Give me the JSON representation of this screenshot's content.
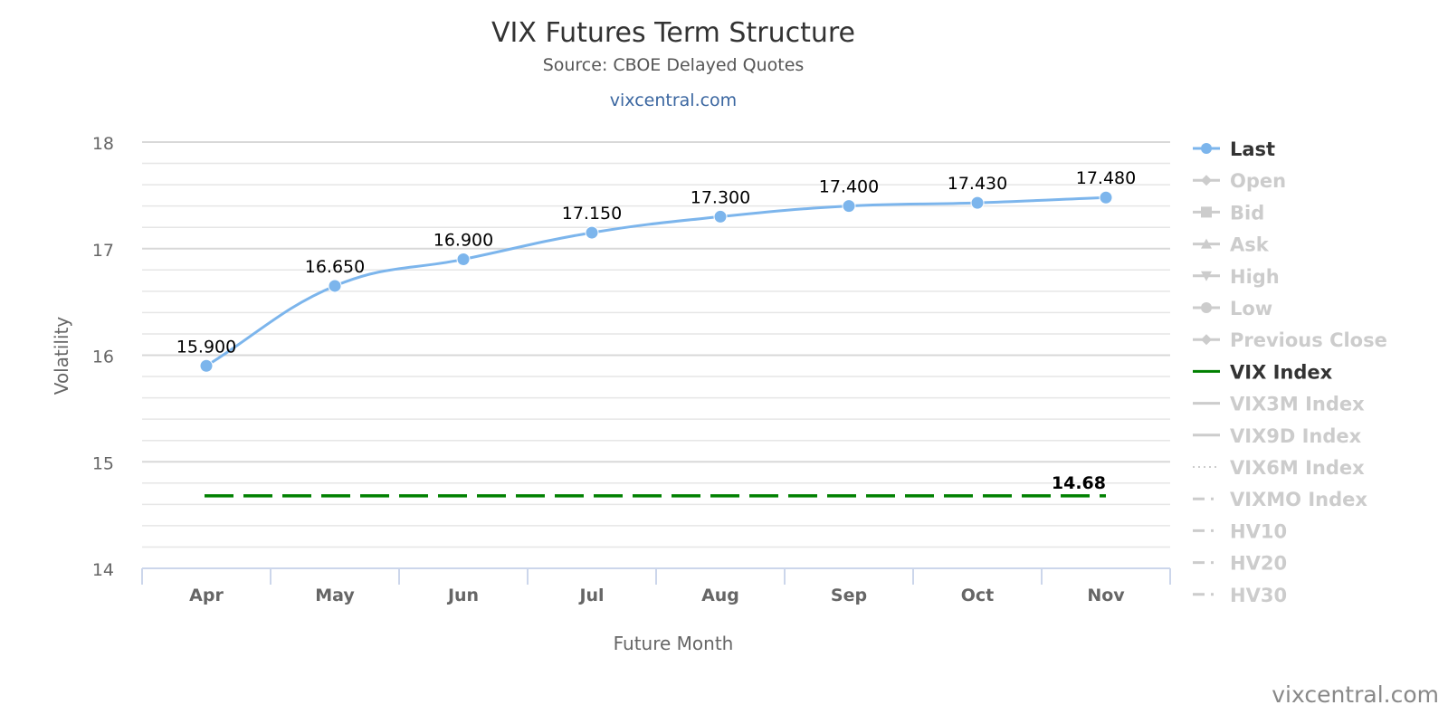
{
  "chart_data": {
    "type": "line",
    "title": "VIX Futures Term Structure",
    "subtitle": "Source: CBOE Delayed Quotes",
    "link": "vixcentral.com",
    "xlabel": "Future Month",
    "ylabel": "Volatility",
    "ylim": [
      14,
      18
    ],
    "yticks": [
      "14",
      "15",
      "16",
      "17",
      "18"
    ],
    "categories": [
      "Apr",
      "May",
      "Jun",
      "Jul",
      "Aug",
      "Sep",
      "Oct",
      "Nov"
    ],
    "series": [
      {
        "name": "Last",
        "color": "#7cb5ec",
        "values": [
          15.9,
          16.65,
          16.9,
          17.15,
          17.3,
          17.4,
          17.43,
          17.48
        ],
        "labels": [
          "15.900",
          "16.650",
          "16.900",
          "17.150",
          "17.300",
          "17.400",
          "17.430",
          "17.480"
        ]
      },
      {
        "name": "VIX Index",
        "color": "#008000",
        "value": 14.68,
        "label": "14.68"
      }
    ],
    "legend": {
      "placement": "right",
      "items": [
        {
          "name": "Last",
          "active": true,
          "symbol": "circle-line",
          "color": "#7cb5ec"
        },
        {
          "name": "Open",
          "active": false,
          "symbol": "diamond"
        },
        {
          "name": "Bid",
          "active": false,
          "symbol": "square"
        },
        {
          "name": "Ask",
          "active": false,
          "symbol": "triangle"
        },
        {
          "name": "High",
          "active": false,
          "symbol": "triangle-down"
        },
        {
          "name": "Low",
          "active": false,
          "symbol": "circle"
        },
        {
          "name": "Previous Close",
          "active": false,
          "symbol": "diamond"
        },
        {
          "name": "VIX Index",
          "active": true,
          "symbol": "line",
          "color": "#008000"
        },
        {
          "name": "VIX3M Index",
          "active": false,
          "symbol": "line"
        },
        {
          "name": "VIX9D Index",
          "active": false,
          "symbol": "line"
        },
        {
          "name": "VIX6M Index",
          "active": false,
          "symbol": "dot"
        },
        {
          "name": "VIXMO Index",
          "active": false,
          "symbol": "dashdot"
        },
        {
          "name": "HV10",
          "active": false,
          "symbol": "dashdot"
        },
        {
          "name": "HV20",
          "active": false,
          "symbol": "dashdot"
        },
        {
          "name": "HV30",
          "active": false,
          "symbol": "dashdot"
        }
      ]
    },
    "credit": "vixcentral.com"
  }
}
